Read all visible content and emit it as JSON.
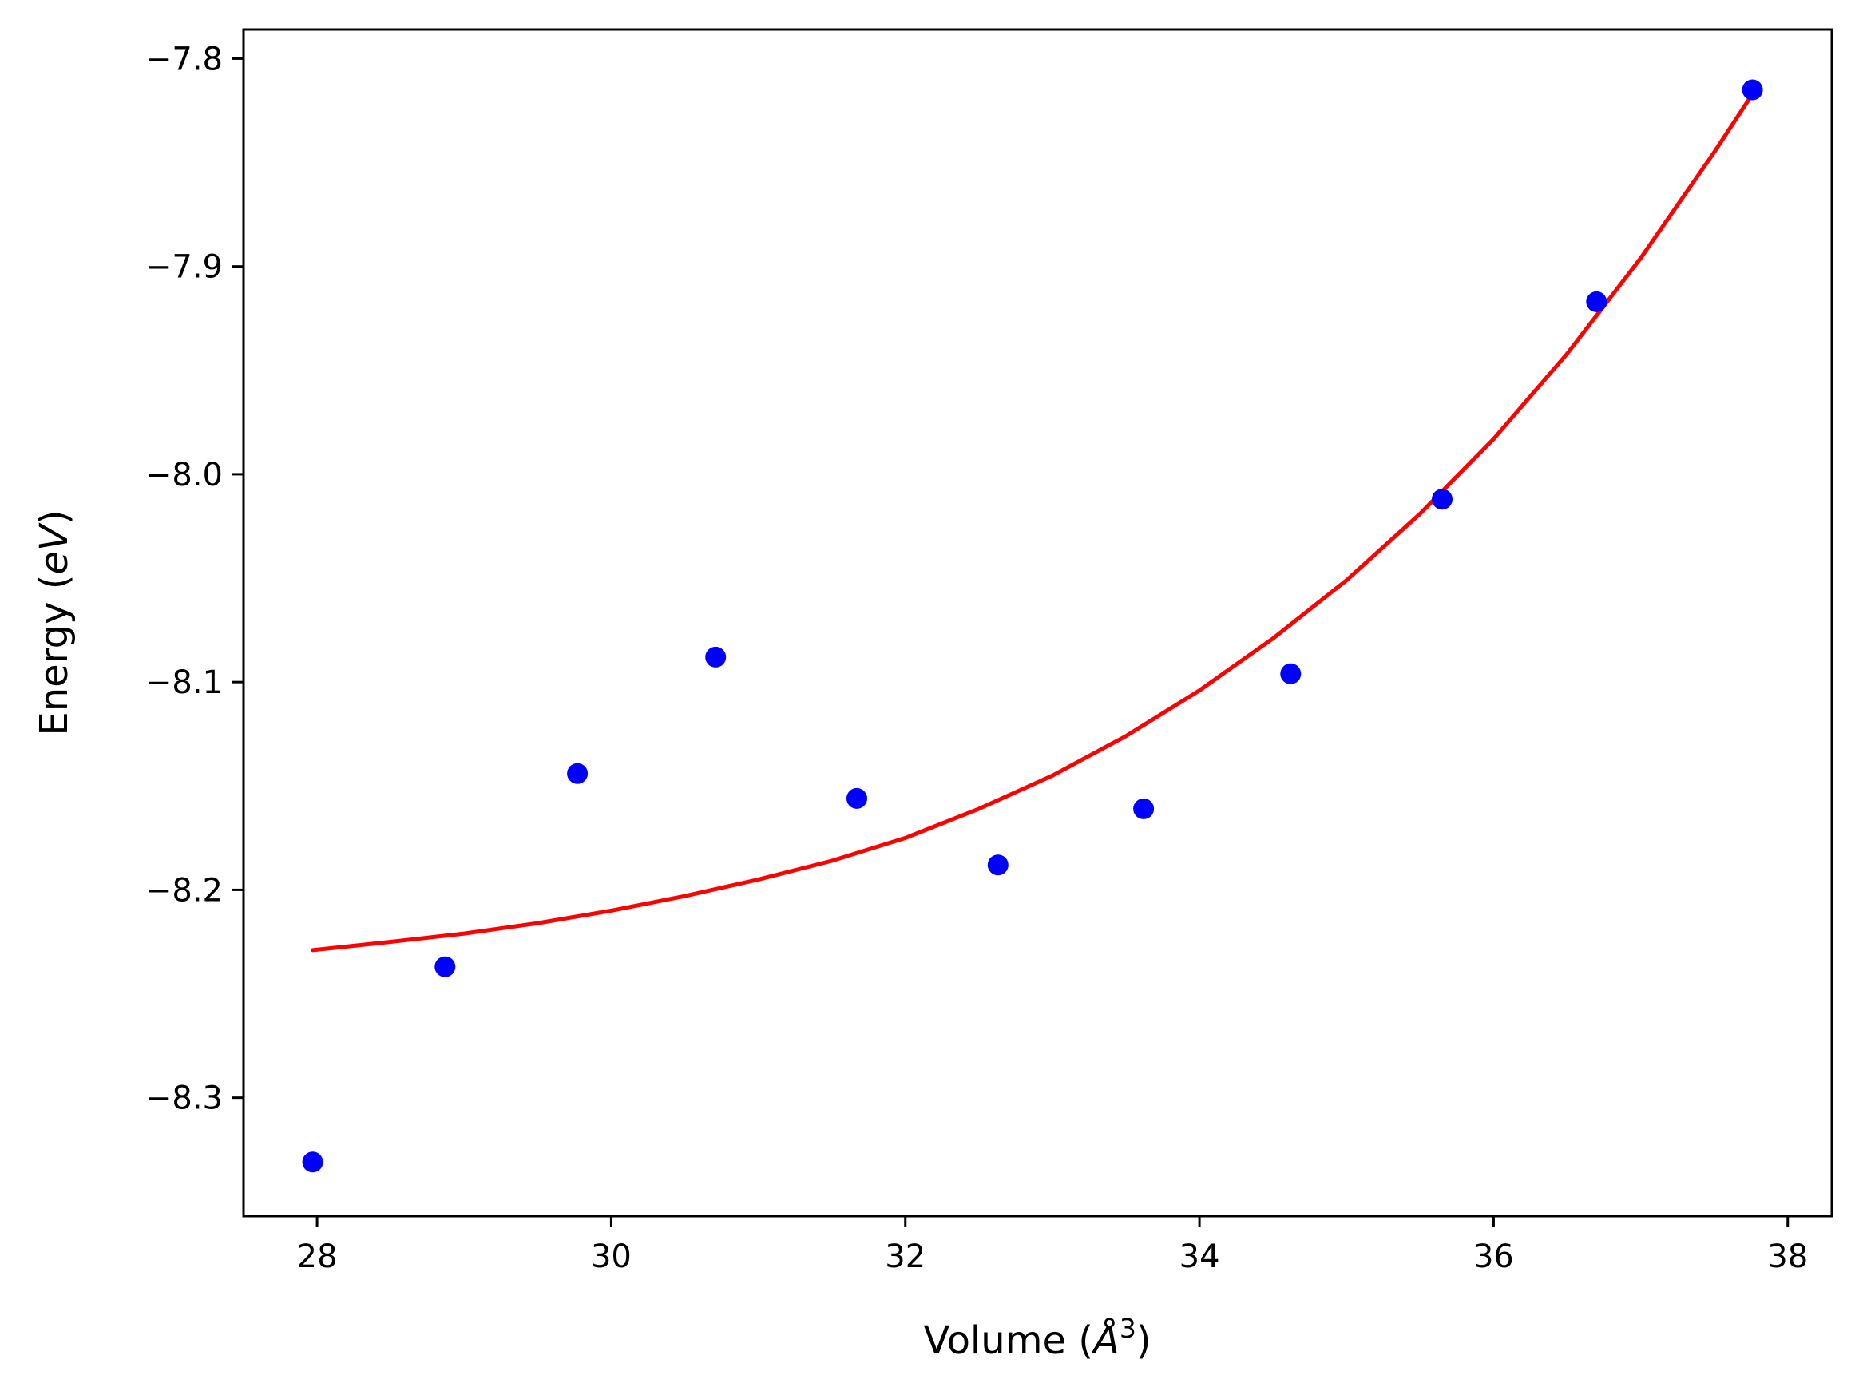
{
  "chart_data": {
    "type": "scatter",
    "xlabel": "Volume (Å³)",
    "xlabel_parts": {
      "prefix": "Volume (",
      "symbol": "Å",
      "power": "3",
      "suffix": ")"
    },
    "ylabel": "Energy (eV)",
    "ylabel_parts": {
      "prefix": "Energy (",
      "unit": "eV",
      "suffix": ")"
    },
    "xlim": [
      27.5,
      38.3
    ],
    "ylim": [
      -8.357,
      -7.786
    ],
    "x_ticks": [
      28,
      30,
      32,
      34,
      36,
      38
    ],
    "y_ticks": [
      -7.8,
      -7.9,
      -8.0,
      -8.1,
      -8.2,
      -8.3
    ],
    "x_tick_labels": [
      "28",
      "30",
      "32",
      "34",
      "36",
      "38"
    ],
    "y_tick_labels": [
      "−7.8",
      "−7.9",
      "−8.0",
      "−8.1",
      "−8.2",
      "−8.3"
    ],
    "grid": false,
    "series": [
      {
        "kind": "points",
        "color": "#0000ff",
        "x": [
          27.97,
          28.87,
          29.77,
          30.71,
          31.67,
          32.63,
          33.62,
          34.62,
          35.65,
          36.7,
          37.76
        ],
        "y": [
          -8.331,
          -8.237,
          -8.144,
          -8.088,
          -8.156,
          -8.188,
          -8.161,
          -8.096,
          -8.012,
          -7.917,
          -7.815
        ]
      },
      {
        "kind": "fit-line",
        "color": "#ff0000",
        "x": [
          27.97,
          28.5,
          29.0,
          29.5,
          30.0,
          30.5,
          31.0,
          31.5,
          32.0,
          32.5,
          33.0,
          33.5,
          34.0,
          34.5,
          35.0,
          35.5,
          36.0,
          36.5,
          37.0,
          37.5,
          37.76
        ],
        "y": [
          -8.229,
          -8.225,
          -8.221,
          -8.216,
          -8.21,
          -8.203,
          -8.195,
          -8.186,
          -8.175,
          -8.161,
          -8.145,
          -8.126,
          -8.104,
          -8.079,
          -8.051,
          -8.019,
          -7.983,
          -7.942,
          -7.896,
          -7.845,
          -7.817
        ]
      }
    ]
  }
}
